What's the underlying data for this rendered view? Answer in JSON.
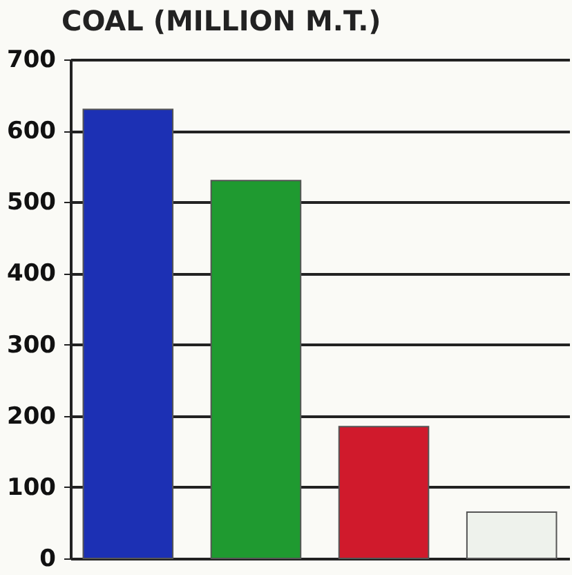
{
  "chart_data": {
    "type": "bar",
    "title": "COAL (MILLION M.T.)",
    "categories": [
      null,
      null,
      null,
      null
    ],
    "values": [
      630,
      530,
      185,
      65
    ],
    "colors": [
      "#1c30b4",
      "#1f9a30",
      "#d01a2c",
      "#eef2ec"
    ],
    "ylim": [
      0,
      700
    ],
    "yticks": [
      0,
      100,
      200,
      300,
      400,
      500,
      600,
      700
    ],
    "grid": "y"
  }
}
